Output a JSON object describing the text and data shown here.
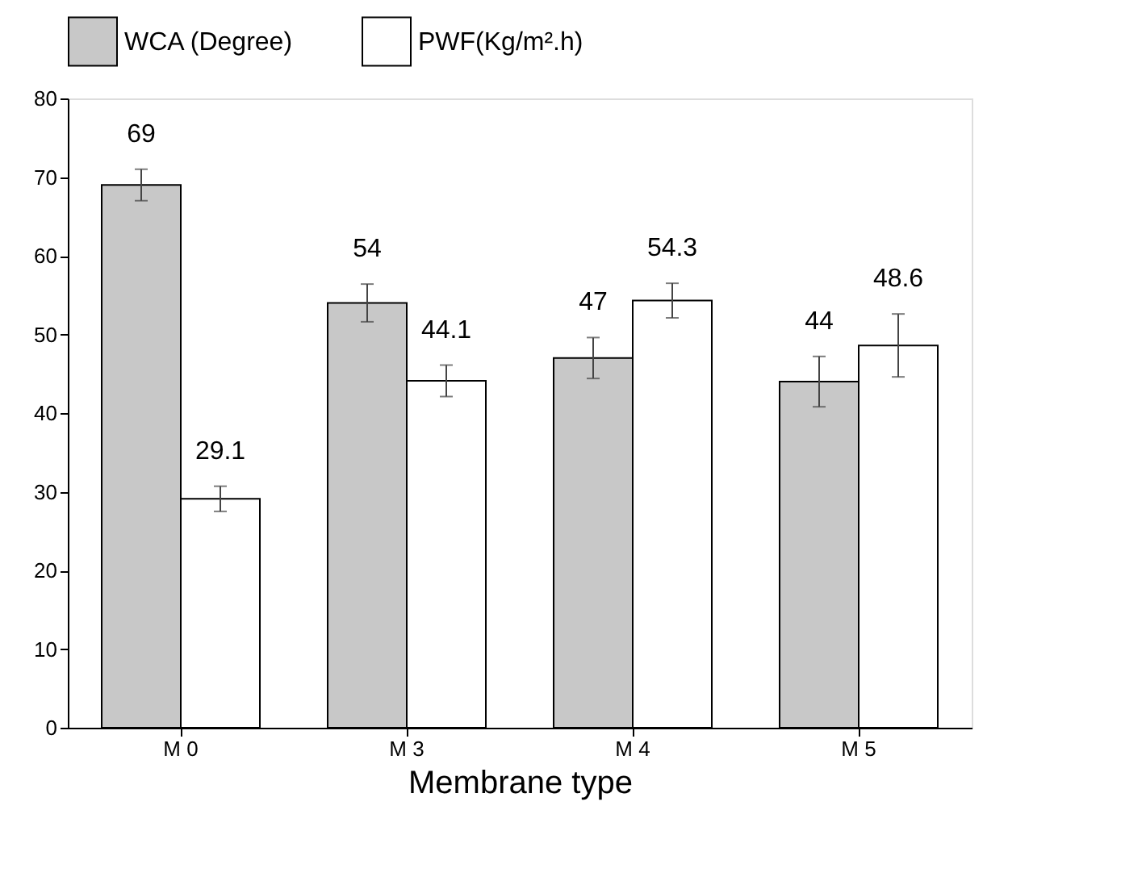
{
  "chart_data": {
    "type": "bar",
    "xlabel": "Membrane type",
    "categories": [
      "M 0",
      "M 3",
      "M 4",
      "M 5"
    ],
    "series": [
      {
        "name": "WCA (Degree)",
        "color": "#c8c8c8",
        "values": [
          69,
          54,
          47,
          44
        ],
        "errors": [
          2,
          2.4,
          2.6,
          3.2
        ]
      },
      {
        "name": "PWF(Kg/m².h)",
        "color": "#ffffff",
        "values": [
          29.1,
          44.1,
          54.3,
          48.6
        ],
        "errors": [
          1.6,
          2,
          2.2,
          4
        ]
      }
    ],
    "ylim": [
      0,
      80
    ],
    "yticks": [
      0,
      10,
      20,
      30,
      40,
      50,
      60,
      70,
      80
    ],
    "grid": false,
    "legend": "top",
    "data_labels": true
  }
}
